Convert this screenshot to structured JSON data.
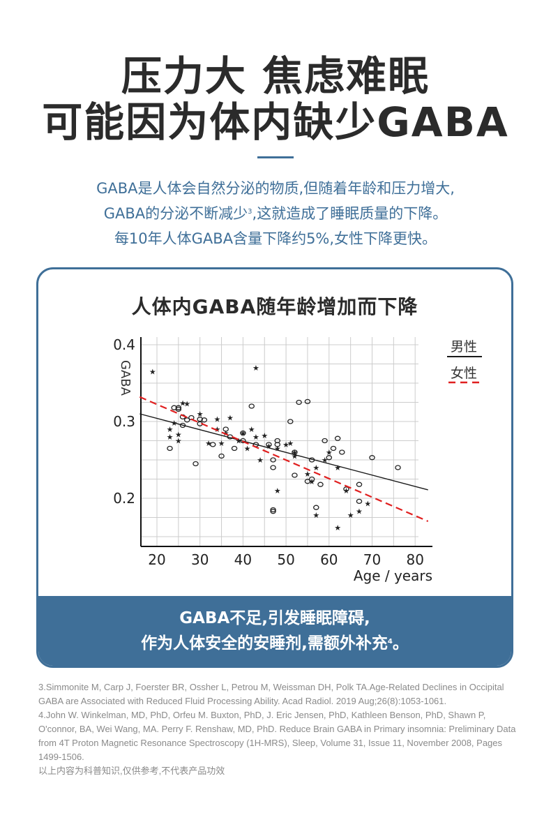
{
  "headline": {
    "line1": "压力大 焦虑难眠",
    "line2": "可能因为体内缺少GABA"
  },
  "intro": {
    "line1": "GABA是人体会自然分泌的物质,但随着年龄和压力增大,",
    "line2_pre": "GABA的分泌不断减少",
    "line2_sup": "3",
    "line2_post": ",这就造成了睡眠质量的下降。",
    "line3": "每10年人体GABA含量下降约5%,女性下降更快。"
  },
  "colors": {
    "accent": "#3f6f98",
    "headline": "#2b2b2b",
    "female_line": "#e02020",
    "male_line": "#1a1a1a",
    "grid": "#cccccc",
    "refs": "#8a8a8a"
  },
  "card": {
    "title": "人体内GABA随年龄增加而下降",
    "banner_line1": "GABA不足,引发睡眠障碍,",
    "banner_line2_pre": "作为人体安全的安睡剂,需额外补充",
    "banner_line2_sup": "4",
    "banner_line2_post": "。"
  },
  "chart_data": {
    "type": "scatter",
    "title": "人体内GABA随年龄增加而下降",
    "xlabel": "Age / years",
    "ylabel": "GABA",
    "xlim": [
      16,
      84
    ],
    "ylim": [
      0.137,
      0.41
    ],
    "x_ticks": [
      20,
      30,
      40,
      50,
      60,
      70,
      80
    ],
    "y_ticks": [
      0.2,
      0.3,
      0.4
    ],
    "y_tick_labels": [
      "0.2",
      "0.3",
      "0.4"
    ],
    "x_tick_labels": [
      "20",
      "30",
      "40",
      "50",
      "60",
      "70",
      "80"
    ],
    "grid": true,
    "legend": {
      "position": "top-right",
      "entries": [
        {
          "label": "男性",
          "style": "solid",
          "color": "#1a1a1a"
        },
        {
          "label": "女性",
          "style": "dashed",
          "color": "#e02020"
        }
      ]
    },
    "series": [
      {
        "name": "男性",
        "marker": "circle",
        "points": [
          [
            23,
            0.265
          ],
          [
            24,
            0.318
          ],
          [
            25,
            0.318
          ],
          [
            25,
            0.316
          ],
          [
            26,
            0.295
          ],
          [
            26,
            0.306
          ],
          [
            27,
            0.302
          ],
          [
            28,
            0.305
          ],
          [
            29,
            0.245
          ],
          [
            30,
            0.303
          ],
          [
            30,
            0.297
          ],
          [
            31,
            0.302
          ],
          [
            33,
            0.27
          ],
          [
            35,
            0.255
          ],
          [
            36,
            0.29
          ],
          [
            37,
            0.28
          ],
          [
            38,
            0.265
          ],
          [
            40,
            0.285
          ],
          [
            40,
            0.275
          ],
          [
            42,
            0.32
          ],
          [
            43,
            0.27
          ],
          [
            46,
            0.27
          ],
          [
            47,
            0.25
          ],
          [
            47,
            0.24
          ],
          [
            47,
            0.185
          ],
          [
            47,
            0.183
          ],
          [
            48,
            0.275
          ],
          [
            48,
            0.27
          ],
          [
            51,
            0.3
          ],
          [
            52,
            0.23
          ],
          [
            52,
            0.26
          ],
          [
            53,
            0.325
          ],
          [
            55,
            0.326
          ],
          [
            55,
            0.222
          ],
          [
            56,
            0.225
          ],
          [
            56,
            0.25
          ],
          [
            57,
            0.188
          ],
          [
            58,
            0.218
          ],
          [
            59,
            0.275
          ],
          [
            60,
            0.253
          ],
          [
            61,
            0.265
          ],
          [
            62,
            0.278
          ],
          [
            63,
            0.26
          ],
          [
            64,
            0.212
          ],
          [
            67,
            0.218
          ],
          [
            67,
            0.196
          ],
          [
            70,
            0.253
          ],
          [
            76,
            0.24
          ]
        ]
      },
      {
        "name": "女性",
        "marker": "star",
        "points": [
          [
            19,
            0.365
          ],
          [
            23,
            0.29
          ],
          [
            23,
            0.28
          ],
          [
            24,
            0.298
          ],
          [
            25,
            0.283
          ],
          [
            25,
            0.275
          ],
          [
            26,
            0.324
          ],
          [
            27,
            0.323
          ],
          [
            30,
            0.31
          ],
          [
            32,
            0.272
          ],
          [
            34,
            0.303
          ],
          [
            34,
            0.29
          ],
          [
            35,
            0.272
          ],
          [
            36,
            0.285
          ],
          [
            37,
            0.305
          ],
          [
            39,
            0.275
          ],
          [
            40,
            0.285
          ],
          [
            41,
            0.265
          ],
          [
            42,
            0.29
          ],
          [
            43,
            0.37
          ],
          [
            43,
            0.28
          ],
          [
            44,
            0.25
          ],
          [
            45,
            0.282
          ],
          [
            46,
            0.268
          ],
          [
            48,
            0.265
          ],
          [
            48,
            0.21
          ],
          [
            50,
            0.27
          ],
          [
            51,
            0.272
          ],
          [
            52,
            0.255
          ],
          [
            52,
            0.26
          ],
          [
            55,
            0.232
          ],
          [
            56,
            0.222
          ],
          [
            57,
            0.24
          ],
          [
            57,
            0.178
          ],
          [
            59,
            0.25
          ],
          [
            60,
            0.26
          ],
          [
            62,
            0.162
          ],
          [
            62,
            0.24
          ],
          [
            64,
            0.21
          ],
          [
            65,
            0.178
          ],
          [
            67,
            0.183
          ],
          [
            69,
            0.193
          ]
        ]
      }
    ],
    "trendlines": [
      {
        "name": "男性",
        "style": "solid",
        "from": [
          16,
          0.31
        ],
        "to": [
          83,
          0.211
        ]
      },
      {
        "name": "女性",
        "style": "dashed",
        "from": [
          16,
          0.332
        ],
        "to": [
          83,
          0.17
        ]
      }
    ]
  },
  "references": {
    "ref3": "3.Simmonite M, Carp J, Foerster BR, Ossher L, Petrou M, Weissman DH, Polk TA.Age-Related Declines in Occipital GABA are Associated with Reduced Fluid Processing Ability. Acad Radiol. 2019 Aug;26(8):1053-1061.",
    "ref4": "4.John W. Winkelman, MD, PhD, Orfeu M. Buxton, PhD, J. Eric Jensen, PhD, Kathleen Benson, PhD, Shawn P, O'connor, BA, Wei Wang, MA. Perry F. Renshaw, MD, PhD. Reduce Brain GABA in Primary insomnia: Preliminary Data from 4T Proton Magnetic Resonance Spectroscopy (1H-MRS), Sleep, Volume 31, Issue 11, November 2008, Pages 1499-1506.",
    "disclaimer": "以上内容为科普知识,仅供参考,不代表产品功效"
  }
}
